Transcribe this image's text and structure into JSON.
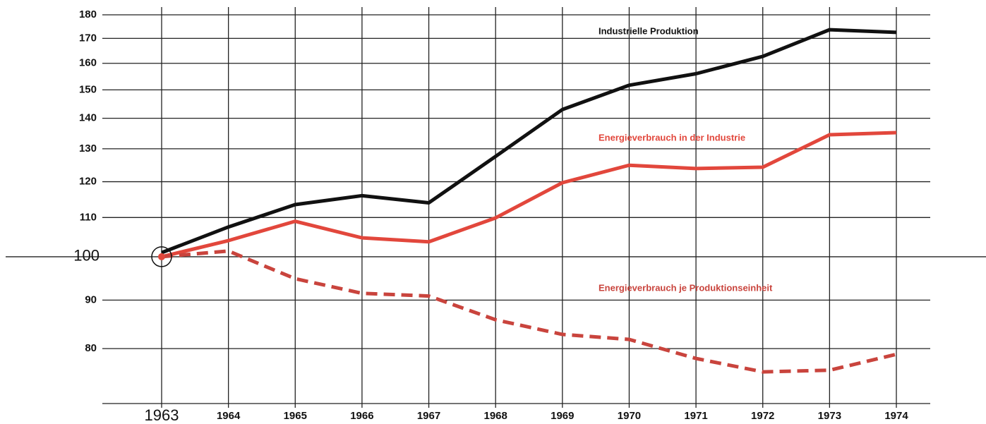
{
  "chart_data": {
    "type": "line",
    "categories": [
      "1963",
      "1964",
      "1965",
      "1966",
      "1967",
      "1968",
      "1969",
      "1970",
      "1971",
      "1972",
      "1973",
      "1974"
    ],
    "series": [
      {
        "name": "Industrielle Produktion",
        "color": "#111111",
        "style": "solid",
        "values": [
          101,
          107.5,
          113.5,
          116,
          114,
          127.6,
          143,
          151.7,
          156,
          162.7,
          173.6,
          172.5
        ]
      },
      {
        "name": "Energieverbrauch in der Industrie",
        "color": "#e2473c",
        "style": "solid",
        "values": [
          100,
          104,
          109,
          104.7,
          103.7,
          109.9,
          119.7,
          124.9,
          123.9,
          124.3,
          134.5,
          135.2
        ]
      },
      {
        "name": "Energieverbrauch je Produktionseinheit",
        "color": "#c9443d",
        "style": "dashed",
        "values": [
          100,
          101.4,
          94.8,
          91.5,
          90.9,
          85.8,
          82.8,
          81.8,
          78.1,
          75.6,
          75.9,
          78.9
        ]
      }
    ],
    "ylim": [
      70,
      180
    ],
    "yticks": [
      80,
      90,
      100,
      110,
      120,
      130,
      140,
      150,
      160,
      170,
      180
    ],
    "log_scale": true,
    "grid": true
  }
}
